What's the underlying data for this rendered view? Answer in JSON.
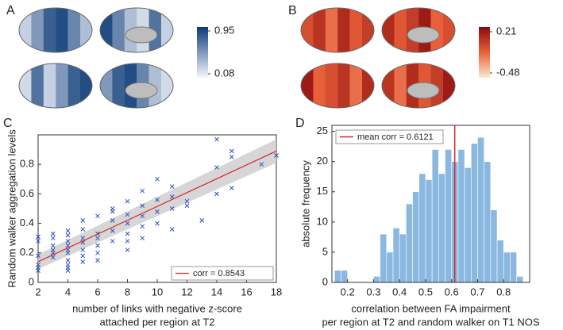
{
  "chart_data": [
    {
      "type": "brain",
      "label": "A",
      "colormap": [
        "#f4f7fc",
        "#0b3a78"
      ],
      "clim": [
        0.0,
        1.03
      ],
      "cticks": [
        0.08,
        0.95
      ]
    },
    {
      "type": "brain",
      "label": "B",
      "colormap": [
        "#fce8cc",
        "#e8603a",
        "#8a0a0a"
      ],
      "clim": [
        -0.56,
        0.29
      ],
      "cticks": [
        -0.48,
        0.21
      ]
    },
    {
      "type": "scatter",
      "label": "C",
      "xlabel": [
        "number of links with negative z-score",
        "attached per region at T2"
      ],
      "ylabel": "Random walker aggregation levels",
      "xlim": [
        2,
        18
      ],
      "xticks": [
        2,
        4,
        6,
        8,
        10,
        12,
        14,
        16,
        18
      ],
      "ylim": [
        0,
        1
      ],
      "yticks": [
        0,
        0.2,
        0.4,
        0.6,
        0.8
      ],
      "color": "#2a52be",
      "x": [
        2,
        2,
        2,
        2,
        2,
        2,
        3,
        3,
        3,
        3,
        3,
        3,
        4,
        4,
        4,
        4,
        4,
        4,
        4,
        4,
        4,
        4,
        5,
        5,
        5,
        5,
        5,
        5,
        5,
        6,
        6,
        6,
        6,
        6,
        6,
        7,
        7,
        7,
        7,
        7,
        8,
        8,
        8,
        8,
        8,
        8,
        9,
        9,
        9,
        9,
        9,
        10,
        10,
        10,
        10,
        11,
        11,
        11,
        11,
        12,
        12,
        13,
        14,
        14,
        14,
        15,
        15,
        15,
        17,
        18
      ],
      "values": [
        0.31,
        0.28,
        0.18,
        0.12,
        0.1,
        0.08,
        0.33,
        0.3,
        0.25,
        0.2,
        0.17,
        0.22,
        0.35,
        0.32,
        0.28,
        0.25,
        0.22,
        0.2,
        0.15,
        0.12,
        0.1,
        0.08,
        0.42,
        0.36,
        0.3,
        0.27,
        0.22,
        0.18,
        0.14,
        0.45,
        0.33,
        0.3,
        0.25,
        0.2,
        0.15,
        0.5,
        0.48,
        0.42,
        0.35,
        0.28,
        0.55,
        0.46,
        0.4,
        0.33,
        0.28,
        0.22,
        0.62,
        0.52,
        0.45,
        0.38,
        0.3,
        0.7,
        0.56,
        0.48,
        0.4,
        0.65,
        0.58,
        0.5,
        0.36,
        0.55,
        0.52,
        0.42,
        0.97,
        0.78,
        0.6,
        0.89,
        0.85,
        0.64,
        0.8,
        0.86
      ],
      "fit": {
        "name": "corr = 0.8543",
        "color": "#d62728",
        "x": [
          2,
          18
        ],
        "values": [
          0.14,
          0.89
        ],
        "ci_lower": [
          0.09,
          0.81
        ],
        "ci_upper": [
          0.19,
          0.97
        ]
      },
      "legend": "lower right"
    },
    {
      "type": "histogram",
      "label": "D",
      "xlabel": [
        "correlation between FA impairment",
        "per region at T2 and random walker on T1 NOS"
      ],
      "ylabel": "absolute frequency",
      "xlim": [
        0.14,
        0.9
      ],
      "xticks": [
        0.2,
        0.3,
        0.4,
        0.5,
        0.6,
        0.7,
        0.8
      ],
      "ylim": [
        0,
        26
      ],
      "yticks": [
        0,
        5,
        10,
        15,
        20,
        25
      ],
      "color": "#8ab8e0",
      "bins": [
        0.15,
        0.175,
        0.2,
        0.225,
        0.25,
        0.275,
        0.3,
        0.325,
        0.35,
        0.375,
        0.4,
        0.425,
        0.45,
        0.475,
        0.5,
        0.525,
        0.55,
        0.575,
        0.6,
        0.625,
        0.65,
        0.675,
        0.7,
        0.725,
        0.75,
        0.775,
        0.8,
        0.825,
        0.85,
        0.875
      ],
      "counts": [
        2,
        2,
        0,
        0,
        0,
        0,
        1,
        8,
        5,
        9,
        8,
        13,
        15,
        18,
        17,
        22,
        18,
        22,
        20,
        22,
        19,
        23,
        24,
        20,
        12,
        7,
        5,
        5,
        1
      ],
      "mean": 0.6121,
      "mean_name": "mean corr = 0.6121",
      "mean_color": "#d62728",
      "legend": "upper left"
    }
  ]
}
